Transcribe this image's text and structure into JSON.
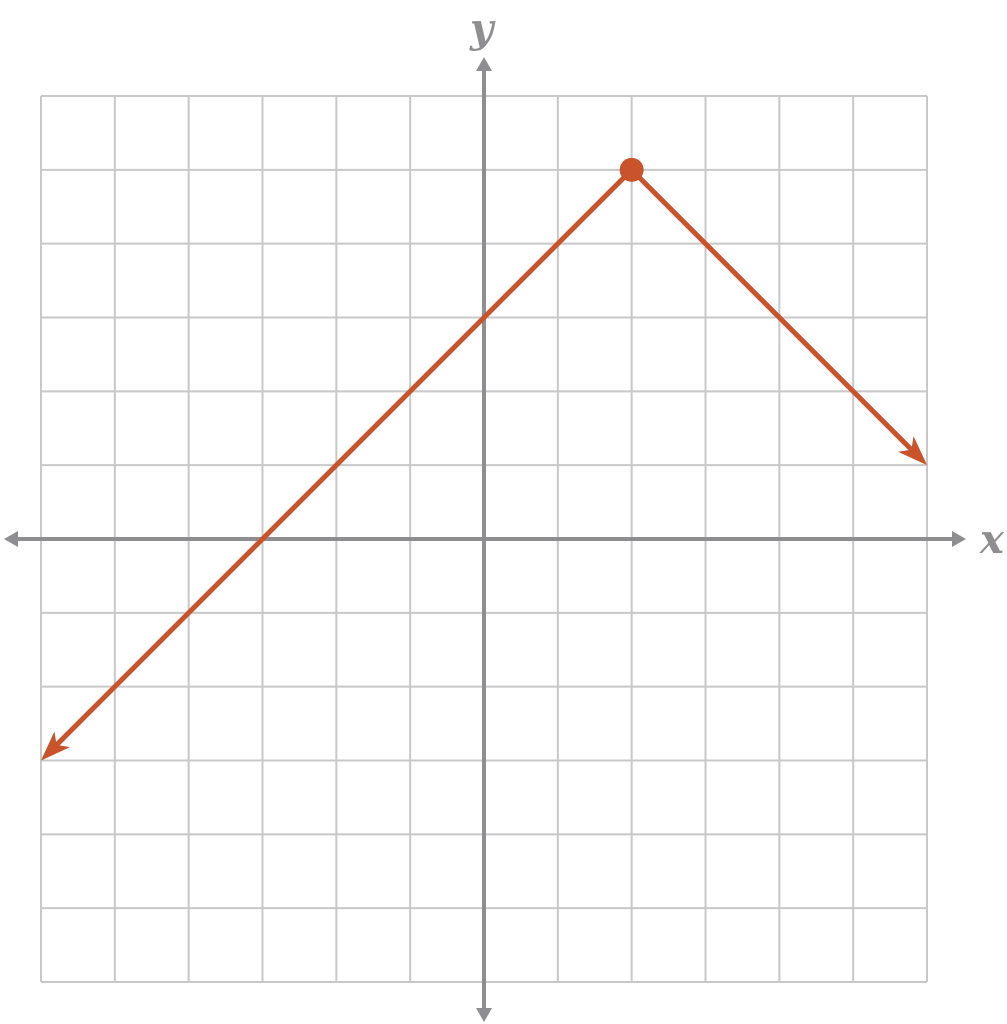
{
  "colors": {
    "grid": "#c8c8ca",
    "axis": "#8e8e90",
    "line": "#c9532a",
    "background": "#ffffff"
  },
  "chart_data": {
    "type": "line",
    "title": "",
    "xlabel": "x",
    "ylabel": "y",
    "xlim": [
      -6,
      6
    ],
    "ylim": [
      -6,
      6
    ],
    "grid": true,
    "legend": "none",
    "tick_labels": false,
    "series": [
      {
        "points": [
          [
            -6,
            -3
          ],
          [
            2,
            5
          ],
          [
            6,
            1
          ]
        ],
        "vertex": [
          2,
          5
        ],
        "vertex_marker": "closed-dot",
        "arrow_ends": [
          "start",
          "end"
        ]
      }
    ]
  }
}
